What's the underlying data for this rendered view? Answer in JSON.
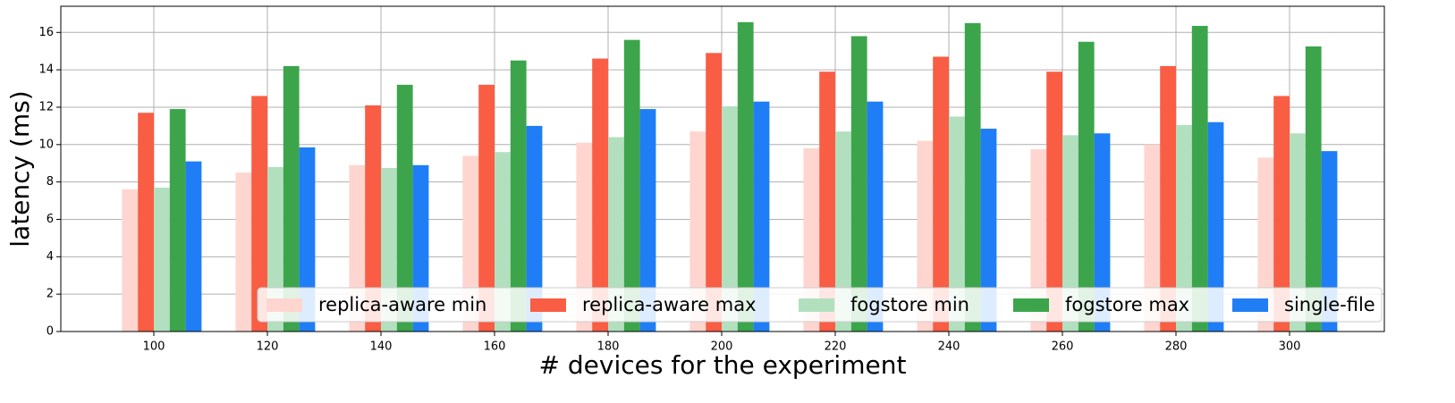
{
  "chart_data": {
    "type": "bar",
    "x_label": "# devices for the experiment",
    "y_label": "latency (ms)",
    "categories": [
      "100",
      "120",
      "140",
      "160",
      "180",
      "200",
      "220",
      "240",
      "260",
      "280",
      "300"
    ],
    "series": [
      {
        "name": "replica-aware min",
        "color": "#ffd5cf",
        "values": [
          7.6,
          8.5,
          8.9,
          9.4,
          10.1,
          10.7,
          9.8,
          10.2,
          9.75,
          10.0,
          9.3
        ]
      },
      {
        "name": "replica-aware max",
        "color": "#f95d43",
        "values": [
          11.7,
          12.6,
          12.1,
          13.2,
          14.6,
          14.9,
          13.9,
          14.7,
          13.9,
          14.2,
          12.6
        ]
      },
      {
        "name": "fogstore min",
        "color": "#b2e0bf",
        "values": [
          7.7,
          8.8,
          8.75,
          9.6,
          10.4,
          12.05,
          10.7,
          11.5,
          10.5,
          11.05,
          10.6
        ]
      },
      {
        "name": "fogstore max",
        "color": "#3ca54b",
        "values": [
          11.9,
          14.2,
          13.2,
          14.5,
          15.6,
          16.55,
          15.8,
          16.5,
          15.5,
          16.35,
          15.25
        ]
      },
      {
        "name": "single-file",
        "color": "#1f7ef5",
        "values": [
          9.1,
          9.85,
          8.9,
          11.0,
          11.9,
          12.3,
          12.3,
          10.85,
          10.6,
          11.2,
          9.65
        ]
      }
    ],
    "ylim": [
      0,
      17.4
    ],
    "yticks": [
      0,
      2,
      4,
      6,
      8,
      10,
      12,
      14,
      16
    ],
    "grid": true,
    "legend": "lower right"
  }
}
